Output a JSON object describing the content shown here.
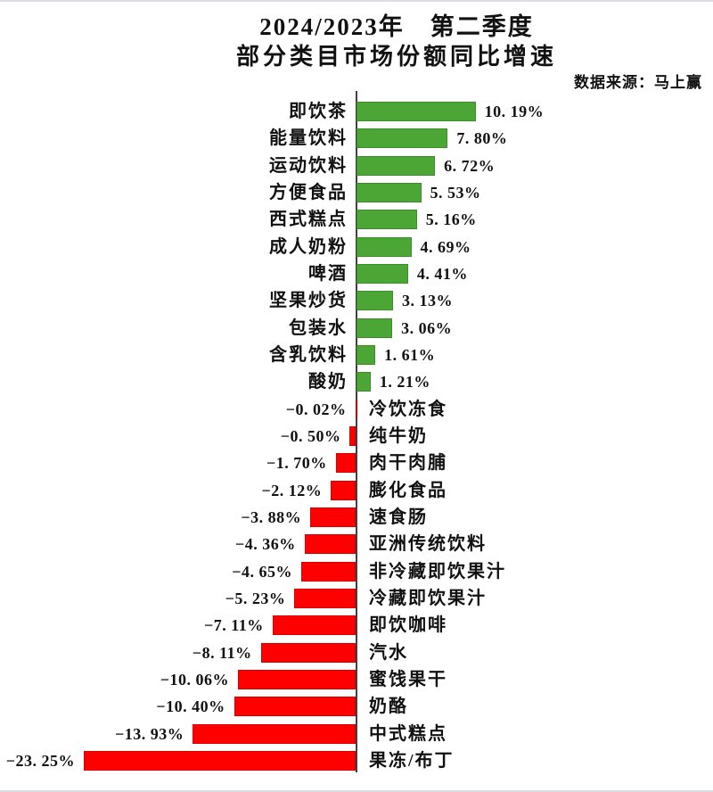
{
  "header": {
    "title_line1": "2024/2023年　第二季度",
    "title_line2": "部分类目市场份额同比增速",
    "source": "数据来源：马上赢"
  },
  "chart_data": {
    "type": "bar",
    "orientation": "horizontal-diverging",
    "title": "2024/2023年 第二季度 部分类目市场份额同比增速",
    "source": "数据来源：马上赢",
    "unit": "%",
    "xlim": [
      -23.25,
      10.19
    ],
    "zero_axis": true,
    "grid": false,
    "legend": false,
    "positive_color": "#4CA636",
    "negative_color": "#FF0000",
    "axis_color": "#3f3f3f",
    "categories": [
      "即饮茶",
      "能量饮料",
      "运动饮料",
      "方便食品",
      "西式糕点",
      "成人奶粉",
      "啤酒",
      "坚果炒货",
      "包装水",
      "含乳饮料",
      "酸奶",
      "冷饮冻食",
      "纯牛奶",
      "肉干肉脯",
      "膨化食品",
      "速食肠",
      "亚洲传统饮料",
      "非冷藏即饮果汁",
      "冷藏即饮果汁",
      "即饮咖啡",
      "汽水",
      "蜜饯果干",
      "奶酪",
      "中式糕点",
      "果冻/布丁"
    ],
    "values": [
      10.19,
      7.8,
      6.72,
      5.53,
      5.16,
      4.69,
      4.41,
      3.13,
      3.06,
      1.61,
      1.21,
      -0.02,
      -0.5,
      -1.7,
      -2.12,
      -3.88,
      -4.36,
      -4.65,
      -5.23,
      -7.11,
      -8.11,
      -10.06,
      -10.4,
      -13.93,
      -23.25
    ],
    "labels": [
      "10. 19%",
      "7. 80%",
      "6. 72%",
      "5. 53%",
      "5. 16%",
      "4. 69%",
      "4. 41%",
      "3. 13%",
      "3. 06%",
      "1. 61%",
      "1. 21%",
      "−0. 02%",
      "−0. 50%",
      "−1. 70%",
      "−2. 12%",
      "−3. 88%",
      "−4. 36%",
      "−4. 65%",
      "−5. 23%",
      "−7. 11%",
      "−8. 11%",
      "−10. 06%",
      "−10. 40%",
      "−13. 93%",
      "−23. 25%"
    ]
  }
}
